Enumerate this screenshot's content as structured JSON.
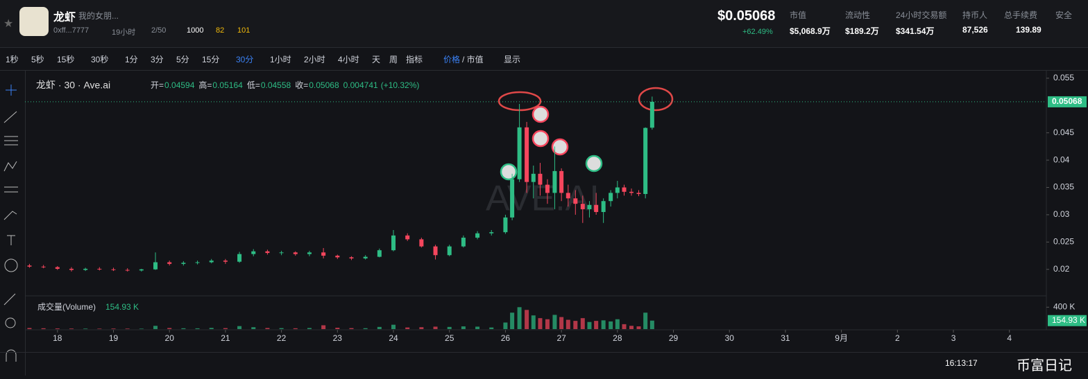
{
  "header": {
    "token": "龙虾",
    "subtitle": "我的女朋...",
    "address": "0xff...7777",
    "age": "19小时",
    "slots": "2/50",
    "badge1": "1000",
    "badge2": "82",
    "badge3": "101",
    "price": "$0.05068",
    "change": "+62.49%",
    "stats": [
      {
        "label": "市值",
        "value": "$5,068.9万"
      },
      {
        "label": "流动性",
        "value": "$189.2万"
      },
      {
        "label": "24小时交易额",
        "value": "$341.54万"
      },
      {
        "label": "持币人",
        "value": "87,526"
      },
      {
        "label": "总手续费",
        "value": "139.89"
      },
      {
        "label": "安全",
        "value": ""
      }
    ]
  },
  "toolbar": {
    "intervals": [
      "1秒",
      "5秒",
      "15秒",
      "30秒",
      "1分",
      "3分",
      "5分",
      "15分",
      "30分",
      "1小时",
      "2小时",
      "4小时",
      "天",
      "周"
    ],
    "active": "30分",
    "indicator": "指标",
    "price": "价格",
    "mcap": "/ 市值",
    "display": "显示"
  },
  "chart_data": {
    "type": "candlestick",
    "title": "龙虾 · 30 · Ave.ai",
    "legend": [
      {
        "label": "开=",
        "value": 0.04594
      },
      {
        "label": "高=",
        "value": 0.05164
      },
      {
        "label": "低=",
        "value": 0.04558
      },
      {
        "label": "收=",
        "value": 0.05068
      }
    ],
    "change": 0.004741,
    "change_pct": "(+10.32%)",
    "watermark": "AVE.AI",
    "xlim": [
      17.42,
      35.66
    ],
    "xticks": [
      18,
      19,
      20,
      21,
      22,
      23,
      24,
      25,
      26,
      27,
      28,
      29,
      30,
      31,
      {
        "value": 32,
        "label": "9月"
      },
      {
        "value": 33,
        "label": "2"
      },
      {
        "value": 34,
        "label": "3"
      },
      {
        "value": 35,
        "label": "4"
      }
    ],
    "ylim": [
      0.0154,
      0.056
    ],
    "yticks": [
      0.055,
      0.045,
      0.04,
      0.035,
      0.03,
      0.025,
      0.02
    ],
    "up_color": "#2ebd85",
    "down_color": "#f6465d",
    "candles": [
      [
        17.5,
        0.0207,
        0.021,
        0.0203,
        0.0205
      ],
      [
        17.75,
        0.0205,
        0.0208,
        0.0202,
        0.0204
      ],
      [
        18,
        0.0204,
        0.0206,
        0.0199,
        0.0201
      ],
      [
        18.25,
        0.0201,
        0.0204,
        0.0196,
        0.0199
      ],
      [
        18.5,
        0.0199,
        0.0203,
        0.0197,
        0.0201
      ],
      [
        18.75,
        0.0201,
        0.0204,
        0.0198,
        0.02
      ],
      [
        19,
        0.02,
        0.0203,
        0.0197,
        0.0199
      ],
      [
        19.25,
        0.0199,
        0.0202,
        0.0196,
        0.0198
      ],
      [
        19.5,
        0.0198,
        0.0201,
        0.0196,
        0.02
      ],
      [
        19.75,
        0.02,
        0.0231,
        0.0199,
        0.0213
      ],
      [
        20,
        0.0213,
        0.0216,
        0.0207,
        0.021
      ],
      [
        20.25,
        0.021,
        0.0215,
        0.0207,
        0.0212
      ],
      [
        20.5,
        0.0212,
        0.0216,
        0.0209,
        0.0213
      ],
      [
        20.75,
        0.0213,
        0.0219,
        0.0211,
        0.0216
      ],
      [
        21,
        0.0216,
        0.0219,
        0.021,
        0.0214
      ],
      [
        21.25,
        0.0214,
        0.0232,
        0.0212,
        0.0228
      ],
      [
        21.5,
        0.0228,
        0.0237,
        0.0224,
        0.0233
      ],
      [
        21.75,
        0.0233,
        0.0236,
        0.0227,
        0.023
      ],
      [
        22,
        0.023,
        0.0234,
        0.0226,
        0.0231
      ],
      [
        22.25,
        0.0231,
        0.0233,
        0.0225,
        0.0228
      ],
      [
        22.5,
        0.0228,
        0.0234,
        0.0224,
        0.0231
      ],
      [
        22.75,
        0.0231,
        0.0239,
        0.022,
        0.0225
      ],
      [
        23,
        0.0225,
        0.0227,
        0.0219,
        0.0222
      ],
      [
        23.25,
        0.0222,
        0.0224,
        0.0217,
        0.022
      ],
      [
        23.5,
        0.022,
        0.0226,
        0.0218,
        0.0223
      ],
      [
        23.75,
        0.0223,
        0.0238,
        0.0222,
        0.0235
      ],
      [
        24,
        0.0235,
        0.0272,
        0.0233,
        0.0262
      ],
      [
        24.25,
        0.0262,
        0.0266,
        0.0252,
        0.0255
      ],
      [
        24.5,
        0.0255,
        0.0258,
        0.024,
        0.0242
      ],
      [
        24.75,
        0.0242,
        0.0245,
        0.0218,
        0.0226
      ],
      [
        25,
        0.0226,
        0.0245,
        0.0224,
        0.0242
      ],
      [
        25.25,
        0.0242,
        0.0262,
        0.024,
        0.0258
      ],
      [
        25.5,
        0.0258,
        0.027,
        0.0255,
        0.0266
      ],
      [
        25.75,
        0.0266,
        0.0272,
        0.0262,
        0.0268
      ],
      [
        26,
        0.0268,
        0.03,
        0.0265,
        0.0295
      ],
      [
        26.12,
        0.0295,
        0.0375,
        0.029,
        0.0365
      ],
      [
        26.25,
        0.0365,
        0.0503,
        0.036,
        0.046
      ],
      [
        26.38,
        0.046,
        0.047,
        0.034,
        0.036
      ],
      [
        26.5,
        0.036,
        0.039,
        0.033,
        0.0375
      ],
      [
        26.62,
        0.0375,
        0.0395,
        0.0335,
        0.0355
      ],
      [
        26.75,
        0.0355,
        0.0365,
        0.032,
        0.034
      ],
      [
        26.88,
        0.034,
        0.0425,
        0.031,
        0.038
      ],
      [
        27,
        0.038,
        0.0385,
        0.0325,
        0.034
      ],
      [
        27.12,
        0.034,
        0.0355,
        0.0315,
        0.033
      ],
      [
        27.25,
        0.033,
        0.0345,
        0.03,
        0.032
      ],
      [
        27.38,
        0.032,
        0.0335,
        0.0285,
        0.031
      ],
      [
        27.5,
        0.031,
        0.0325,
        0.0295,
        0.0318
      ],
      [
        27.62,
        0.0318,
        0.034,
        0.03,
        0.0305
      ],
      [
        27.75,
        0.0305,
        0.033,
        0.0285,
        0.0325
      ],
      [
        27.88,
        0.0325,
        0.0345,
        0.0315,
        0.034
      ],
      [
        28,
        0.034,
        0.0362,
        0.033,
        0.035
      ],
      [
        28.12,
        0.035,
        0.0355,
        0.0335,
        0.0342
      ],
      [
        28.25,
        0.0342,
        0.0348,
        0.0335,
        0.034
      ],
      [
        28.38,
        0.034,
        0.0345,
        0.0334,
        0.0338
      ],
      [
        28.5,
        0.0338,
        0.046,
        0.033,
        0.0459
      ],
      [
        28.62,
        0.04594,
        0.05164,
        0.04558,
        0.05068
      ]
    ],
    "volume_title": "成交量(Volume)",
    "volume_label": "154.93 K",
    "vlim": [
      0,
      480000
    ],
    "vticks": [
      {
        "value": 400000,
        "label": "400 K"
      }
    ],
    "volume": [
      20000,
      15000,
      12000,
      10000,
      9000,
      8000,
      10000,
      9000,
      8000,
      60000,
      20000,
      15000,
      14000,
      22000,
      18000,
      55000,
      35000,
      20000,
      18000,
      15000,
      20000,
      70000,
      25000,
      18000,
      16000,
      40000,
      80000,
      30000,
      35000,
      45000,
      40000,
      50000,
      45000,
      30000,
      120000,
      300000,
      400000,
      350000,
      250000,
      200000,
      180000,
      260000,
      220000,
      170000,
      150000,
      200000,
      130000,
      150000,
      160000,
      140000,
      180000,
      90000,
      60000,
      50000,
      300000,
      154930
    ]
  },
  "footer": {
    "time": "16:13:17",
    "brand": "币富日记"
  }
}
